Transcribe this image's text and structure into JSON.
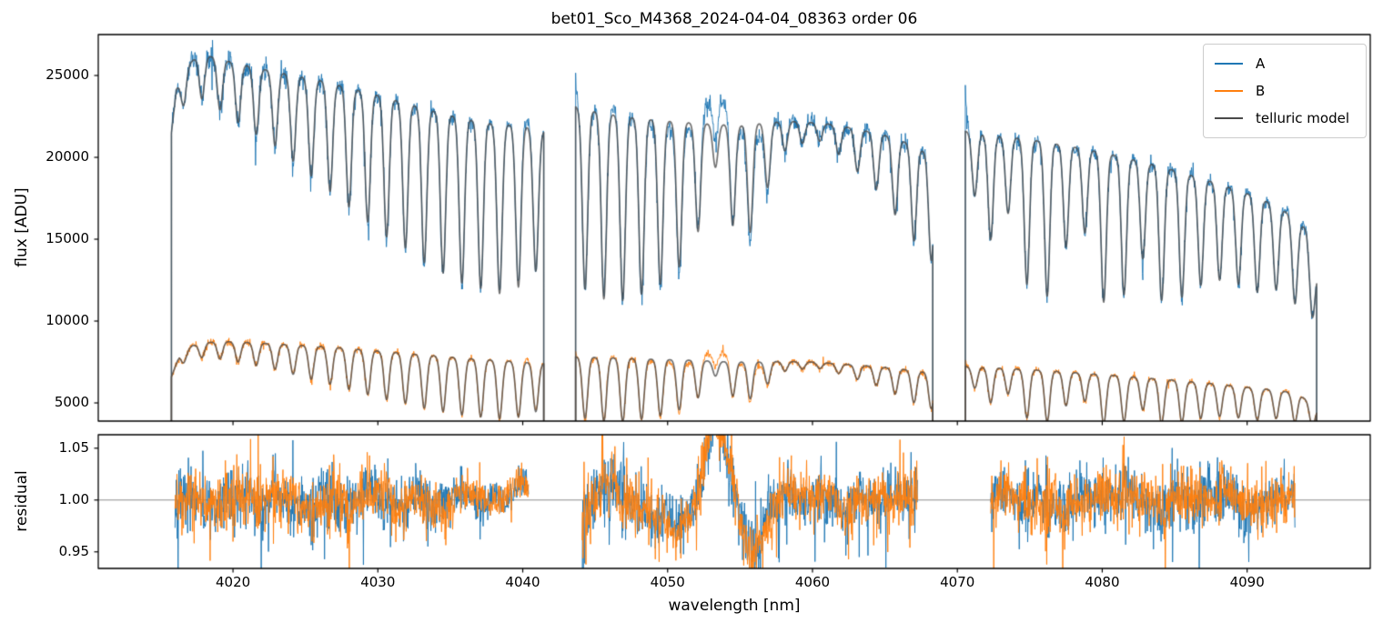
{
  "chart_data": {
    "type": "line",
    "title": "bet01_Sco_M4368_2024-04-04_08363  order 06",
    "xlabel": "wavelength [nm]",
    "xlim": [
      4010.7,
      4098.5
    ],
    "xticks": [
      4020,
      4030,
      4040,
      4050,
      4060,
      4070,
      4080,
      4090
    ],
    "xtick_labels": [
      "4020",
      "4030",
      "4040",
      "4050",
      "4060",
      "4070",
      "4080",
      "4090"
    ],
    "panels": {
      "flux": {
        "ylabel": "flux [ADU]",
        "ylim": [
          3890,
          27500
        ],
        "yticks": [
          5000,
          10000,
          15000,
          20000,
          25000
        ],
        "ytick_labels": [
          "5000",
          "10000",
          "15000",
          "20000",
          "25000"
        ]
      },
      "residual": {
        "ylabel": "residual",
        "ylim": [
          0.934,
          1.063
        ],
        "yticks": [
          0.95,
          1.0,
          1.05
        ],
        "ytick_labels": [
          "0.95",
          "1.00",
          "1.05"
        ],
        "hline": 1.0,
        "hline_color": "#808080"
      }
    },
    "series": [
      {
        "name": "A",
        "color": "#1f77b4"
      },
      {
        "name": "B",
        "color": "#ff7f0e"
      },
      {
        "name": "telluric model",
        "color": "#4a4a4a"
      }
    ],
    "segments_nm": {
      "flux": [
        [
          4015.75,
          4041.45
        ],
        [
          4043.65,
          4068.3
        ],
        [
          4070.55,
          4094.8
        ]
      ],
      "residual": [
        [
          4016.0,
          4040.4
        ],
        [
          4044.1,
          4067.25
        ],
        [
          4072.3,
          4093.3
        ]
      ]
    },
    "continuum_A": [
      [
        4015.75,
        21500
      ],
      [
        4016.1,
        24200
      ],
      [
        4016.8,
        25600
      ],
      [
        4017.6,
        26200
      ],
      [
        4018.6,
        26150
      ],
      [
        4020,
        25800
      ],
      [
        4022,
        25400
      ],
      [
        4024,
        25050
      ],
      [
        4026,
        24700
      ],
      [
        4028,
        24250
      ],
      [
        4030,
        23800
      ],
      [
        4032,
        23300
      ],
      [
        4034,
        22800
      ],
      [
        4036,
        22350
      ],
      [
        4038,
        22050
      ],
      [
        4040,
        21950
      ],
      [
        4041.45,
        21600
      ],
      [
        4043.65,
        23100
      ],
      [
        4045,
        22800
      ],
      [
        4047,
        22500
      ],
      [
        4049,
        22300
      ],
      [
        4051,
        22150
      ],
      [
        4053,
        22050
      ],
      [
        4055,
        21950
      ],
      [
        4057,
        22150
      ],
      [
        4059,
        22200
      ],
      [
        4061,
        22050
      ],
      [
        4063,
        21750
      ],
      [
        4065,
        21350
      ],
      [
        4066.5,
        20900
      ],
      [
        4068.3,
        20100
      ],
      [
        4070.55,
        21600
      ],
      [
        4072,
        21400
      ],
      [
        4074,
        21200
      ],
      [
        4076,
        20950
      ],
      [
        4078,
        20650
      ],
      [
        4080,
        20300
      ],
      [
        4082,
        19900
      ],
      [
        4084,
        19450
      ],
      [
        4086,
        18950
      ],
      [
        4088,
        18400
      ],
      [
        4090,
        17800
      ],
      [
        4091.5,
        17250
      ],
      [
        4093,
        16500
      ],
      [
        4094.1,
        15600
      ],
      [
        4094.8,
        13200
      ]
    ],
    "continuum_B": [
      [
        4015.75,
        6600
      ],
      [
        4016.3,
        7900
      ],
      [
        4017.2,
        8500
      ],
      [
        4018.2,
        8700
      ],
      [
        4019.5,
        8750
      ],
      [
        4021,
        8700
      ],
      [
        4023,
        8600
      ],
      [
        4025,
        8500
      ],
      [
        4027,
        8400
      ],
      [
        4029,
        8250
      ],
      [
        4031,
        8100
      ],
      [
        4033,
        7950
      ],
      [
        4035,
        7800
      ],
      [
        4037,
        7670
      ],
      [
        4039,
        7560
      ],
      [
        4041.45,
        7420
      ],
      [
        4043.65,
        7820
      ],
      [
        4046,
        7760
      ],
      [
        4048,
        7700
      ],
      [
        4050,
        7650
      ],
      [
        4052,
        7600
      ],
      [
        4054,
        7520
      ],
      [
        4056,
        7500
      ],
      [
        4058,
        7540
      ],
      [
        4060,
        7500
      ],
      [
        4062,
        7380
      ],
      [
        4064,
        7250
      ],
      [
        4066,
        7080
      ],
      [
        4068.3,
        6820
      ],
      [
        4070.55,
        7230
      ],
      [
        4073,
        7130
      ],
      [
        4076,
        6980
      ],
      [
        4079,
        6800
      ],
      [
        4082,
        6600
      ],
      [
        4085,
        6380
      ],
      [
        4088,
        6150
      ],
      [
        4090,
        5960
      ],
      [
        4092,
        5780
      ],
      [
        4093.5,
        5580
      ],
      [
        4094.8,
        4700
      ]
    ],
    "telluric_lines": [
      [
        4016.6,
        0.08
      ],
      [
        4017.85,
        0.1
      ],
      [
        4019.1,
        0.12
      ],
      [
        4020.35,
        0.14
      ],
      [
        4021.6,
        0.16
      ],
      [
        4022.9,
        0.18
      ],
      [
        4024.15,
        0.21
      ],
      [
        4025.4,
        0.24
      ],
      [
        4026.7,
        0.27
      ],
      [
        4028.0,
        0.3
      ],
      [
        4029.3,
        0.33
      ],
      [
        4030.6,
        0.36
      ],
      [
        4031.9,
        0.38
      ],
      [
        4033.2,
        0.41
      ],
      [
        4034.5,
        0.43
      ],
      [
        4035.8,
        0.45
      ],
      [
        4037.1,
        0.46
      ],
      [
        4038.4,
        0.47
      ],
      [
        4039.7,
        0.45
      ],
      [
        4040.9,
        0.4
      ],
      [
        4044.3,
        0.48
      ],
      [
        4045.6,
        0.5
      ],
      [
        4046.9,
        0.5
      ],
      [
        4048.2,
        0.48
      ],
      [
        4049.5,
        0.45
      ],
      [
        4050.8,
        0.4
      ],
      [
        4052.1,
        0.3
      ],
      [
        4053.3,
        0.12
      ],
      [
        4054.5,
        0.28
      ],
      [
        4055.7,
        0.3
      ],
      [
        4056.9,
        0.18
      ],
      [
        4058.1,
        0.08
      ],
      [
        4059.3,
        0.06
      ],
      [
        4060.5,
        0.05
      ],
      [
        4061.8,
        0.08
      ],
      [
        4063.1,
        0.12
      ],
      [
        4064.4,
        0.16
      ],
      [
        4065.7,
        0.22
      ],
      [
        4067.0,
        0.28
      ],
      [
        4068.2,
        0.32
      ],
      [
        4071.2,
        0.18
      ],
      [
        4072.3,
        0.3
      ],
      [
        4073.5,
        0.22
      ],
      [
        4074.8,
        0.42
      ],
      [
        4076.2,
        0.45
      ],
      [
        4077.5,
        0.3
      ],
      [
        4078.8,
        0.25
      ],
      [
        4080.1,
        0.45
      ],
      [
        4081.5,
        0.42
      ],
      [
        4082.8,
        0.3
      ],
      [
        4084.1,
        0.42
      ],
      [
        4085.5,
        0.4
      ],
      [
        4086.8,
        0.35
      ],
      [
        4088.1,
        0.32
      ],
      [
        4089.4,
        0.32
      ],
      [
        4090.7,
        0.33
      ],
      [
        4092.0,
        0.3
      ],
      [
        4093.3,
        0.32
      ],
      [
        4094.5,
        0.28
      ]
    ],
    "telluric_sigma_nm": 0.18,
    "start_overshoot": {
      "A": [
        0,
        0.085,
        0.11
      ],
      "B": [
        0,
        0.045,
        0.05
      ]
    },
    "residual_features": [
      [
        4040.2,
        0.026,
        0.55
      ],
      [
        4044.3,
        -0.022,
        0.45
      ],
      [
        4046.2,
        0.016,
        0.8
      ],
      [
        4048.8,
        -0.012,
        0.8
      ],
      [
        4051.0,
        -0.03,
        0.85
      ],
      [
        4053.35,
        0.082,
        0.75
      ],
      [
        4055.9,
        -0.043,
        0.85
      ],
      [
        4058.2,
        0.006,
        1.0
      ],
      [
        4093.0,
        0.012,
        0.5
      ]
    ],
    "residual_sigma_knots": [
      [
        4016,
        0.013
      ],
      [
        4022,
        0.0135
      ],
      [
        4028,
        0.013
      ],
      [
        4033,
        0.0115
      ],
      [
        4036,
        0.008
      ],
      [
        4038.5,
        0.006
      ],
      [
        4040,
        0.0065
      ],
      [
        4040.4,
        0.009
      ],
      [
        4044.1,
        0.014
      ],
      [
        4048,
        0.013
      ],
      [
        4052,
        0.012
      ],
      [
        4056,
        0.013
      ],
      [
        4060,
        0.0125
      ],
      [
        4064,
        0.012
      ],
      [
        4067.25,
        0.013
      ],
      [
        4072.3,
        0.011
      ],
      [
        4076,
        0.0115
      ],
      [
        4080,
        0.012
      ],
      [
        4084,
        0.0125
      ],
      [
        4088,
        0.0125
      ],
      [
        4091,
        0.012
      ],
      [
        4093.3,
        0.012
      ]
    ],
    "flux_noise_knots": [
      [
        4016,
        0.013
      ],
      [
        4024,
        0.013
      ],
      [
        4030,
        0.012
      ],
      [
        4035,
        0.01
      ],
      [
        4038,
        0.0075
      ],
      [
        4041,
        0.007
      ],
      [
        4044,
        0.013
      ],
      [
        4050,
        0.012
      ],
      [
        4056,
        0.011
      ],
      [
        4062,
        0.011
      ],
      [
        4068,
        0.012
      ],
      [
        4071,
        0.011
      ],
      [
        4080,
        0.0115
      ],
      [
        4088,
        0.012
      ],
      [
        4094,
        0.012
      ]
    ],
    "axes_color": "#000000",
    "background_color": "#ffffff"
  }
}
